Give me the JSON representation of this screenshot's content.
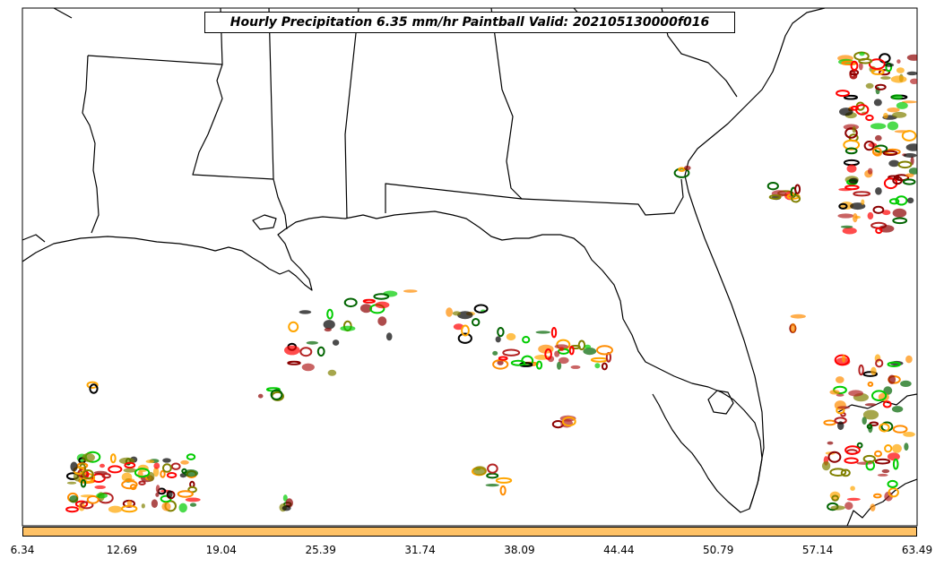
{
  "title": "Hourly Precipitation 6.35 mm/hr Paintball Valid: 202105130000f016",
  "colorbar": {
    "color": "#ffc266",
    "ticks": [
      "6.34",
      "12.69",
      "19.04",
      "25.39",
      "31.74",
      "38.09",
      "44.44",
      "50.79",
      "57.14",
      "63.49"
    ]
  },
  "colors": {
    "land_line": "#000000",
    "members": [
      "#000000",
      "#8b0000",
      "#ff0000",
      "#ff8c00",
      "#ffa500",
      "#808000",
      "#006400",
      "#00cc00",
      "#b22222"
    ]
  }
}
